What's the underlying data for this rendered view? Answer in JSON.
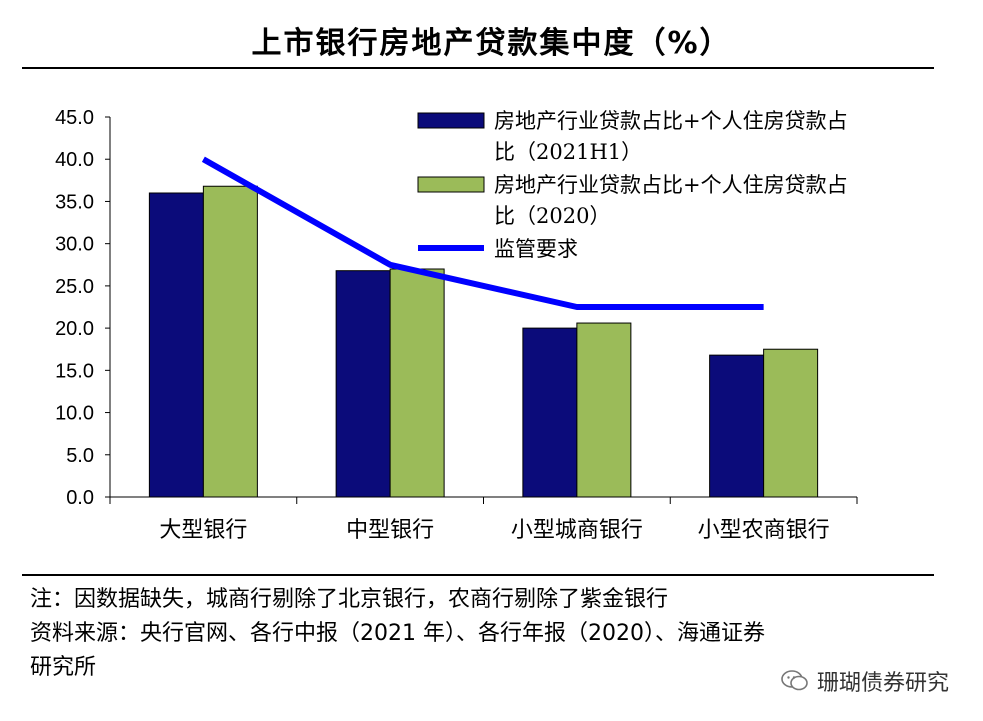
{
  "header": {
    "title": "上市银行房地产贷款集中度（%）"
  },
  "chart_data": {
    "type": "bar",
    "categories": [
      "大型银行",
      "中型银行",
      "小型城商银行",
      "小型农商银行"
    ],
    "series": [
      {
        "name": "房地产行业贷款占比+个人住房贷款占比（2021H1）",
        "values": [
          36.0,
          26.8,
          20.0,
          16.8
        ],
        "color": "#0b0b7a"
      },
      {
        "name": "房地产行业贷款占比+个人住房贷款占比（2020）",
        "values": [
          36.8,
          27.0,
          20.6,
          17.5
        ],
        "color": "#9bbb59"
      }
    ],
    "line_series": {
      "name": "监管要求",
      "values": [
        40.0,
        27.5,
        22.5,
        22.5
      ],
      "color": "#0000ff"
    },
    "ylim": [
      0,
      45
    ],
    "yticks": [
      "0.0",
      "5.0",
      "10.0",
      "15.0",
      "20.0",
      "25.0",
      "30.0",
      "35.0",
      "40.0",
      "45.0"
    ],
    "legend": [
      {
        "line1": "房地产行业贷款占比+个人住房贷款占",
        "line2": "比（2021H1）"
      },
      {
        "line1": "房地产行业贷款占比+个人住房贷款占",
        "line2": "比（2020）"
      },
      {
        "line1": "监管要求",
        "line2": ""
      }
    ],
    "xlabel": "",
    "ylabel": "",
    "legend_position": "top-right"
  },
  "notes": {
    "note": "注：因数据缺失，城商行剔除了北京银行，农商行剔除了紫金银行",
    "source": "资料来源：央行官网、各行中报（2021 年）、各行年报（2020）、海通证券",
    "source_cont": "研究所"
  },
  "watermark": {
    "text": "珊瑚债券研究",
    "icon": "wechat-icon"
  }
}
